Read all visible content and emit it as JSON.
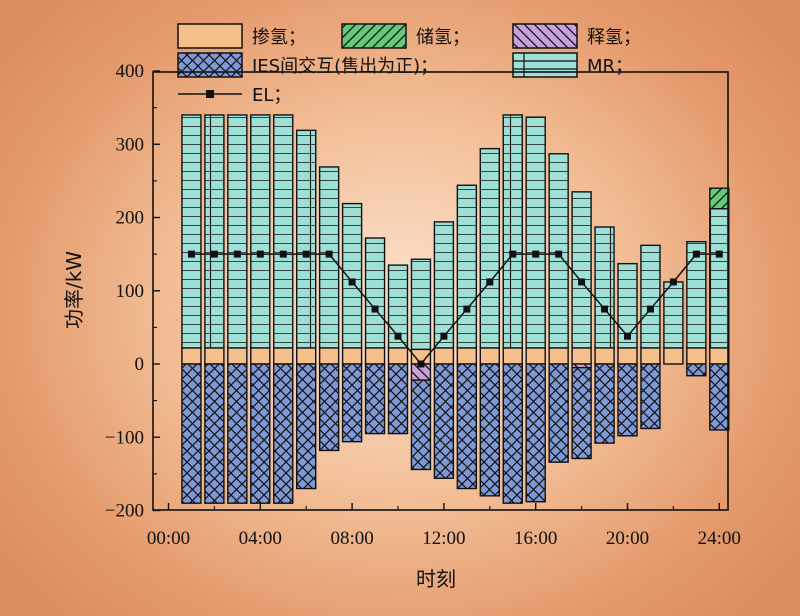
{
  "chart_data": {
    "type": "bar",
    "x": [
      "00:00",
      "01:00",
      "02:00",
      "03:00",
      "04:00",
      "05:00",
      "06:00",
      "07:00",
      "08:00",
      "09:00",
      "10:00",
      "11:00",
      "12:00",
      "13:00",
      "14:00",
      "15:00",
      "16:00",
      "17:00",
      "18:00",
      "19:00",
      "20:00",
      "21:00",
      "22:00",
      "23:00",
      "24:00"
    ],
    "xticks": [
      "00:00",
      "04:00",
      "08:00",
      "12:00",
      "16:00",
      "20:00",
      "24:00"
    ],
    "ylim": [
      -210,
      400
    ],
    "yticks": [
      -200,
      -100,
      0,
      100,
      200,
      300,
      400
    ],
    "ylabel": "功率/kW",
    "xlabel": "时刻",
    "series": [
      {
        "name": "掺氢；",
        "color": "#f6c08c",
        "pattern": "none",
        "values": [
          null,
          22,
          22,
          22,
          22,
          22,
          22,
          22,
          22,
          22,
          22,
          20,
          22,
          22,
          22,
          22,
          22,
          22,
          22,
          22,
          22,
          22,
          22,
          22,
          22
        ]
      },
      {
        "name": "储氢；",
        "color": "#66c87a",
        "pattern": "hatch",
        "values": [
          null,
          0,
          0,
          0,
          0,
          0,
          0,
          0,
          0,
          0,
          0,
          0,
          0,
          0,
          0,
          0,
          0,
          0,
          0,
          0,
          0,
          0,
          0,
          0,
          28
        ]
      },
      {
        "name": "释氢；",
        "color": "#c9a0dc",
        "pattern": "hatch",
        "values": [
          null,
          0,
          0,
          0,
          0,
          0,
          0,
          0,
          0,
          0,
          0,
          -22,
          0,
          0,
          0,
          0,
          0,
          0,
          -5,
          0,
          0,
          0,
          0,
          0,
          0
        ]
      },
      {
        "name": "IES间交互(售出为正)；",
        "color": "#7f99d6",
        "pattern": "cross",
        "values": [
          null,
          -190,
          -190,
          -190,
          -190,
          -190,
          -170,
          -118,
          -106,
          -95,
          -95,
          -122,
          -156,
          -170,
          -180,
          -190,
          -188,
          -134,
          -124,
          -108,
          -98,
          -88,
          0,
          -16,
          -90
        ]
      },
      {
        "name": "MR；",
        "color": "#9fe0d6",
        "pattern": "grid",
        "values": [
          null,
          318,
          318,
          318,
          318,
          318,
          297,
          247,
          197,
          150,
          113,
          123,
          172,
          222,
          272,
          318,
          315,
          265,
          213,
          165,
          115,
          140,
          90,
          145,
          190
        ]
      },
      {
        "name": "EL；",
        "color": "#1a1a1a",
        "type": "line",
        "values": [
          null,
          150,
          150,
          150,
          150,
          150,
          150,
          150,
          112,
          75,
          38,
          0,
          38,
          75,
          112,
          150,
          150,
          150,
          112,
          75,
          38,
          75,
          112,
          150,
          150
        ]
      }
    ],
    "legend_position": "top"
  }
}
